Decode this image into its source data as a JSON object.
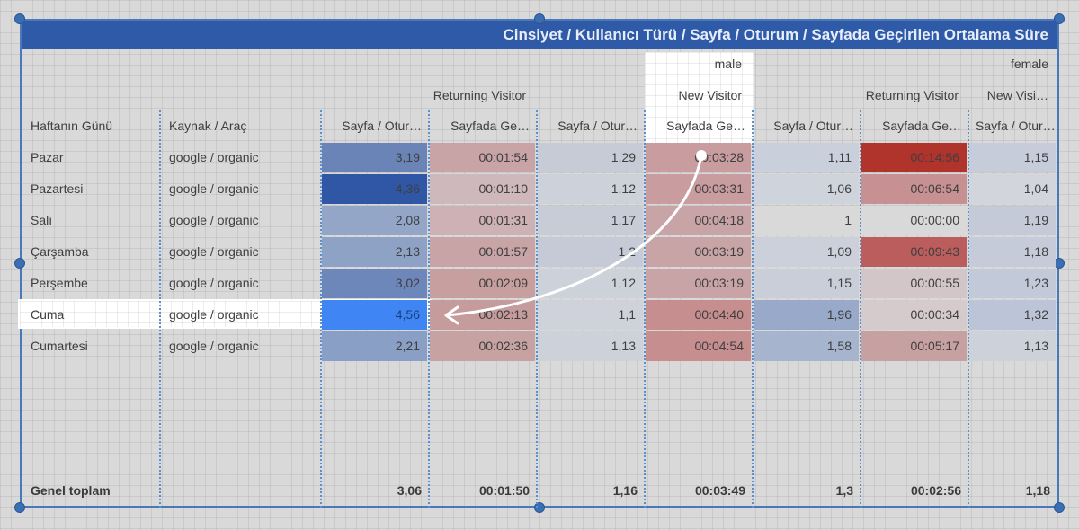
{
  "title": "Cinsiyet / Kullanıcı Türü / Sayfa / Oturum / Sayfada Geçirilen Ortalama Süre",
  "gender_headers": [
    {
      "label": "male",
      "right": 825
    },
    {
      "label": "female",
      "right": 1166
    }
  ],
  "user_type_headers": [
    {
      "label": "Returning Visitor",
      "right": 585
    },
    {
      "label": "New Visitor",
      "right": 825
    },
    {
      "label": "Returning Visitor",
      "right": 1066
    },
    {
      "label": "New Visi…",
      "right": 1166
    }
  ],
  "columns": [
    "Haftanın Günü",
    "Kaynak / Araç",
    "Sayfa / Otur…",
    "Sayfada Ge…",
    "Sayfa / Otur…",
    "Sayfada Ge…",
    "Sayfa / Otur…",
    "Sayfada Ge…",
    "Sayfa / Otur…"
  ],
  "rows": [
    {
      "day": "Pazar",
      "source": "google / organic",
      "values": [
        "3,19",
        "00:01:54",
        "1,29",
        "00:03:28",
        "1,11",
        "00:14:56",
        "1,15"
      ]
    },
    {
      "day": "Pazartesi",
      "source": "google / organic",
      "values": [
        "4,36",
        "00:01:10",
        "1,12",
        "00:03:31",
        "1,06",
        "00:06:54",
        "1,04"
      ]
    },
    {
      "day": "Salı",
      "source": "google / organic",
      "values": [
        "2,08",
        "00:01:31",
        "1,17",
        "00:04:18",
        "1",
        "00:00:00",
        "1,19"
      ]
    },
    {
      "day": "Çarşamba",
      "source": "google / organic",
      "values": [
        "2,13",
        "00:01:57",
        "1,2",
        "00:03:19",
        "1,09",
        "00:09:43",
        "1,18"
      ]
    },
    {
      "day": "Perşembe",
      "source": "google / organic",
      "values": [
        "3,02",
        "00:02:09",
        "1,12",
        "00:03:19",
        "1,15",
        "00:00:55",
        "1,23"
      ]
    },
    {
      "day": "Cuma",
      "source": "google / organic",
      "values": [
        "4,56",
        "00:02:13",
        "1,1",
        "00:04:40",
        "1,96",
        "00:00:34",
        "1,32"
      ]
    },
    {
      "day": "Cumartesi",
      "source": "google / organic",
      "values": [
        "2,21",
        "00:02:36",
        "1,13",
        "00:04:54",
        "1,58",
        "00:05:17",
        "1,13"
      ]
    }
  ],
  "totals": {
    "label": "Genel toplam",
    "values": [
      "3,06",
      "00:01:50",
      "1,16",
      "00:03:49",
      "1,3",
      "00:02:56",
      "1,18"
    ]
  },
  "heat_colors": [
    [
      "#6a84b8",
      "#c9a4a6",
      "#c6cbd6",
      "#c99c9f",
      "#c9cfdb",
      "#b0332c",
      "#c6ccd9"
    ],
    [
      "#2f57a6",
      "#ceb8bb",
      "#cdd1da",
      "#c99c9f",
      "#cfd3dc",
      "#c79194",
      "#d3d5dc"
    ],
    [
      "#93a6c8",
      "#cdb1b4",
      "#c8ccd7",
      "#c9a4a6",
      "#d9d9d9",
      "#d9d9d9",
      "#c4cad8"
    ],
    [
      "#8ea2c6",
      "#c9a4a6",
      "#c5cad6",
      "#c9a4a6",
      "#ccd0da",
      "#bb5c5d",
      "#c5cbd9"
    ],
    [
      "#6e87ba",
      "#c79f9f",
      "#cdd1da",
      "#c9a4a6",
      "#c9ced9",
      "#d3c6c8",
      "#c2c9d8"
    ],
    [
      "#3f86f4",
      "#c59b9c",
      "#cfd2db",
      "#c78e90",
      "#98a9c9",
      "#d5cbcc",
      "#bcc5d8"
    ],
    [
      "#8a9fc5",
      "#c7a2a3",
      "#cdd1da",
      "#c78e90",
      "#a6b4cd",
      "#c7a0a2",
      "#cdd1da"
    ]
  ],
  "highlighted_row_color": "#ffffff",
  "title_bar_color": "#2e5aa7"
}
